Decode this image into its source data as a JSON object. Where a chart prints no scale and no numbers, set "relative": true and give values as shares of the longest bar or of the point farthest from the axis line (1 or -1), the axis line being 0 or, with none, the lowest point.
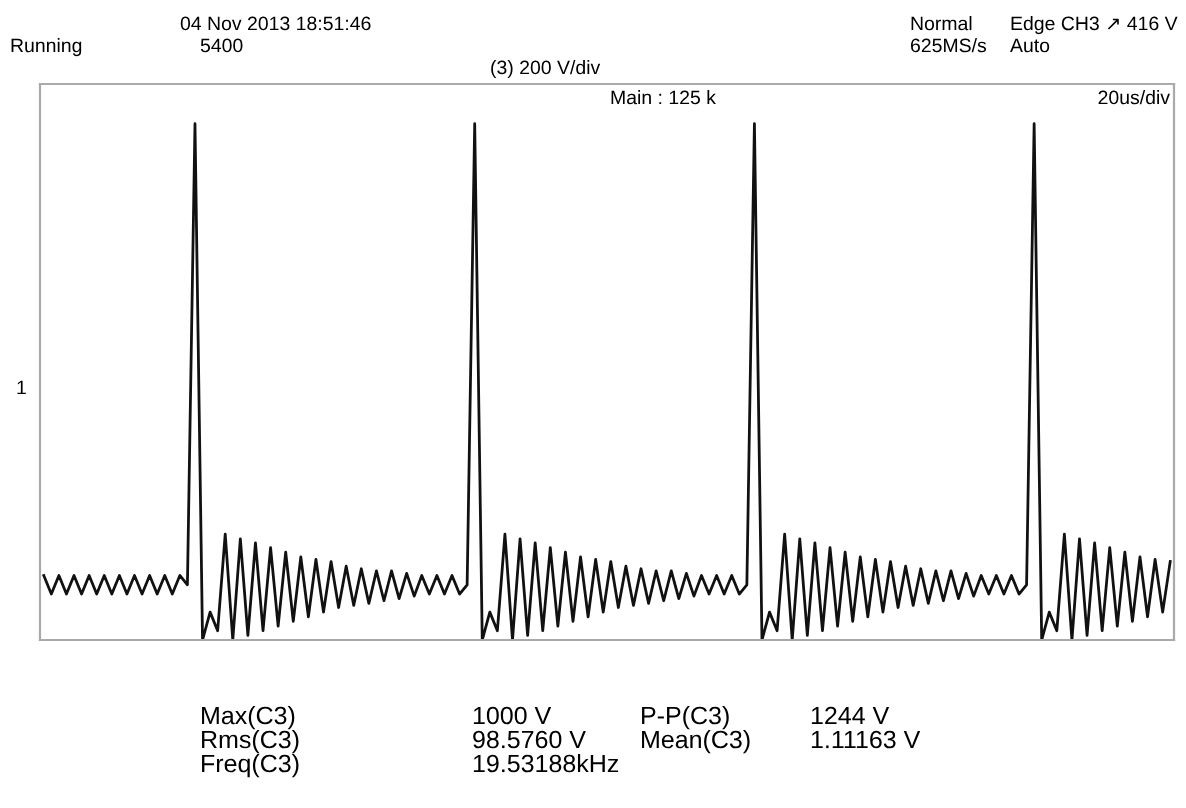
{
  "chart_data": {
    "type": "line",
    "relative": true,
    "grid": false,
    "legend": false,
    "marker": "none",
    "line_style": "solid",
    "categories": [
      null,
      null,
      null,
      null,
      null,
      null,
      null,
      null,
      null,
      null,
      null,
      null,
      null,
      null,
      null,
      null,
      null,
      null,
      null,
      null,
      null,
      null,
      null,
      null,
      null,
      null,
      null,
      null,
      null,
      null,
      null,
      null,
      null,
      null,
      null,
      null,
      null,
      null,
      null,
      null,
      null,
      null,
      null,
      null,
      null,
      null,
      null,
      null,
      null,
      null,
      null,
      null,
      null,
      null,
      null,
      null,
      null,
      null,
      null,
      null,
      null,
      null,
      null,
      null,
      null,
      null,
      null,
      null,
      null,
      null,
      null,
      null,
      null,
      null,
      null,
      null,
      null,
      null,
      null,
      null,
      null,
      null,
      null,
      null,
      null,
      null,
      null,
      null,
      null,
      null,
      null,
      null,
      null,
      null,
      null,
      null,
      null,
      null,
      null,
      null,
      null,
      null,
      null,
      null,
      null,
      null,
      null,
      null,
      null,
      null,
      null,
      null,
      null,
      null,
      null,
      null,
      null,
      null,
      null,
      null,
      null,
      null,
      null,
      null,
      null,
      null,
      null,
      null,
      null,
      null,
      null,
      null,
      null,
      null,
      null,
      null,
      null,
      null,
      null,
      null,
      null,
      null,
      null,
      null,
      null,
      null,
      null,
      null,
      null,
      null
    ],
    "series": [
      {
        "color": "#111111",
        "values": [
          0.125,
          0.089,
          0.125,
          0.089,
          0.125,
          0.089,
          0.125,
          0.089,
          0.125,
          0.089,
          0.125,
          0.089,
          0.125,
          0.089,
          0.125,
          0.089,
          0.125,
          0.089,
          0.125,
          0.107,
          1,
          0,
          0.054,
          0.018,
          0.205,
          0,
          0.196,
          0.009,
          0.188,
          0.018,
          0.179,
          0.027,
          0.17,
          0.036,
          0.161,
          0.045,
          0.156,
          0.054,
          0.152,
          0.063,
          0.143,
          0.067,
          0.138,
          0.071,
          0.134,
          0.076,
          0.134,
          0.08,
          0.129,
          0.085,
          0.125,
          0.089,
          0.125,
          0.089,
          0.125,
          0.089,
          0.107,
          1,
          0,
          0.054,
          0.018,
          0.205,
          0,
          0.196,
          0.009,
          0.188,
          0.018,
          0.179,
          0.027,
          0.17,
          0.036,
          0.161,
          0.045,
          0.156,
          0.054,
          0.152,
          0.063,
          0.143,
          0.067,
          0.138,
          0.071,
          0.134,
          0.076,
          0.134,
          0.08,
          0.129,
          0.085,
          0.125,
          0.089,
          0.125,
          0.089,
          0.125,
          0.089,
          0.107,
          1,
          0,
          0.054,
          0.018,
          0.205,
          0,
          0.196,
          0.009,
          0.188,
          0.018,
          0.179,
          0.027,
          0.17,
          0.036,
          0.161,
          0.045,
          0.156,
          0.054,
          0.152,
          0.063,
          0.143,
          0.067,
          0.138,
          0.071,
          0.134,
          0.076,
          0.134,
          0.08,
          0.129,
          0.085,
          0.125,
          0.089,
          0.125,
          0.089,
          0.125,
          0.089,
          0.107,
          1,
          0,
          0.054,
          0.018,
          0.205,
          0,
          0.196,
          0.009,
          0.188,
          0.018,
          0.179,
          0.027,
          0.17,
          0.036,
          0.161,
          0.045,
          0.156,
          0.054,
          0.152
        ]
      }
    ],
    "annotations": [
      "04 Nov 2013 18:51:46",
      "Running",
      "5400",
      "Normal",
      "625MS/s",
      "Edge CH3 ↗ 416 V",
      "Auto",
      "(3) 200 V/div",
      "Main : 125 k",
      "20us/div",
      "1",
      "Max(C3)",
      "1000 V",
      "P-P(C3)",
      "1244 V",
      "Rms(C3)",
      "98.5760 V",
      "Mean(C3)",
      "1.11163 V",
      "Freq(C3)",
      "19.53188kHz"
    ]
  }
}
